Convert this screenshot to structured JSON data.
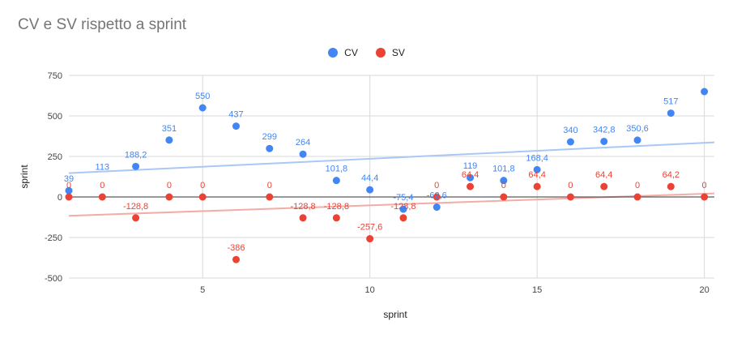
{
  "chart_data": {
    "type": "scatter",
    "title": "CV e SV rispetto a sprint",
    "xlabel": "sprint",
    "ylabel": "sprint",
    "xlim": [
      1,
      20.3
    ],
    "ylim": [
      -500,
      750
    ],
    "xticks": [
      5,
      10,
      15,
      20
    ],
    "yticks": [
      -500,
      -250,
      0,
      250,
      500,
      750
    ],
    "xtick_labels": [
      "5",
      "10",
      "15",
      "20"
    ],
    "ytick_labels": [
      "-500",
      "-250",
      "0",
      "250",
      "500",
      "750"
    ],
    "grid": true,
    "legend_position": "top",
    "series": [
      {
        "name": "CV",
        "color": "#4285F4",
        "trendline_color": "#a9c7f7",
        "trendline": [
          [
            1,
            147
          ],
          [
            20.3,
            337
          ]
        ],
        "points": [
          {
            "x": 1,
            "y": 39,
            "label": "39"
          },
          {
            "x": 3,
            "y": 188.2,
            "label": "188,2"
          },
          {
            "x": 4,
            "y": 351,
            "label": "351"
          },
          {
            "x": 5,
            "y": 550,
            "label": "550"
          },
          {
            "x": 6,
            "y": 437,
            "label": "437"
          },
          {
            "x": 7,
            "y": 299,
            "label": "299"
          },
          {
            "x": 8,
            "y": 264,
            "label": "264"
          },
          {
            "x": 9,
            "y": 101.8,
            "label": "101,8"
          },
          {
            "x": 10,
            "y": 44.4,
            "label": "44,4"
          },
          {
            "x": 11,
            "y": -75.4,
            "label": "-75,4"
          },
          {
            "x": 12,
            "y": -62.6,
            "label": "-62,6"
          },
          {
            "x": 13,
            "y": 119,
            "label": "119"
          },
          {
            "x": 14,
            "y": 101.8,
            "label": "101,8"
          },
          {
            "x": 15,
            "y": 168.4,
            "label": "168,4"
          },
          {
            "x": 16,
            "y": 340,
            "label": "340"
          },
          {
            "x": 17,
            "y": 342.8,
            "label": "342,8"
          },
          {
            "x": 18,
            "y": 350.6,
            "label": "350,6"
          },
          {
            "x": 19,
            "y": 517,
            "label": "517"
          },
          {
            "x": 20,
            "y": 650,
            "label": ""
          }
        ],
        "extra_labels": [
          {
            "x": 2,
            "y": 113,
            "label": "113"
          }
        ]
      },
      {
        "name": "SV",
        "color": "#EA4335",
        "trendline_color": "#f4aca5",
        "trendline": [
          [
            1,
            -116
          ],
          [
            20.3,
            22
          ]
        ],
        "points": [
          {
            "x": 1,
            "y": 0,
            "label": "0"
          },
          {
            "x": 2,
            "y": 0,
            "label": "0"
          },
          {
            "x": 3,
            "y": -128.8,
            "label": "-128,8"
          },
          {
            "x": 4,
            "y": 0,
            "label": "0"
          },
          {
            "x": 5,
            "y": 0,
            "label": "0"
          },
          {
            "x": 6,
            "y": -386,
            "label": "-386"
          },
          {
            "x": 7,
            "y": 0,
            "label": "0"
          },
          {
            "x": 8,
            "y": -128.8,
            "label": "-128,8"
          },
          {
            "x": 9,
            "y": -128.8,
            "label": "-128,8"
          },
          {
            "x": 10,
            "y": -257.6,
            "label": "-257,6"
          },
          {
            "x": 11,
            "y": -128.8,
            "label": "-128,8"
          },
          {
            "x": 12,
            "y": 0,
            "label": "0"
          },
          {
            "x": 13,
            "y": 64.4,
            "label": "64,4"
          },
          {
            "x": 14,
            "y": 0,
            "label": "0"
          },
          {
            "x": 15,
            "y": 64.4,
            "label": "64,4"
          },
          {
            "x": 16,
            "y": 0,
            "label": "0"
          },
          {
            "x": 17,
            "y": 64.4,
            "label": "64,4"
          },
          {
            "x": 18,
            "y": 0,
            "label": "0"
          },
          {
            "x": 19,
            "y": 64.2,
            "label": "64,2"
          },
          {
            "x": 20,
            "y": 0,
            "label": "0"
          }
        ]
      }
    ]
  }
}
